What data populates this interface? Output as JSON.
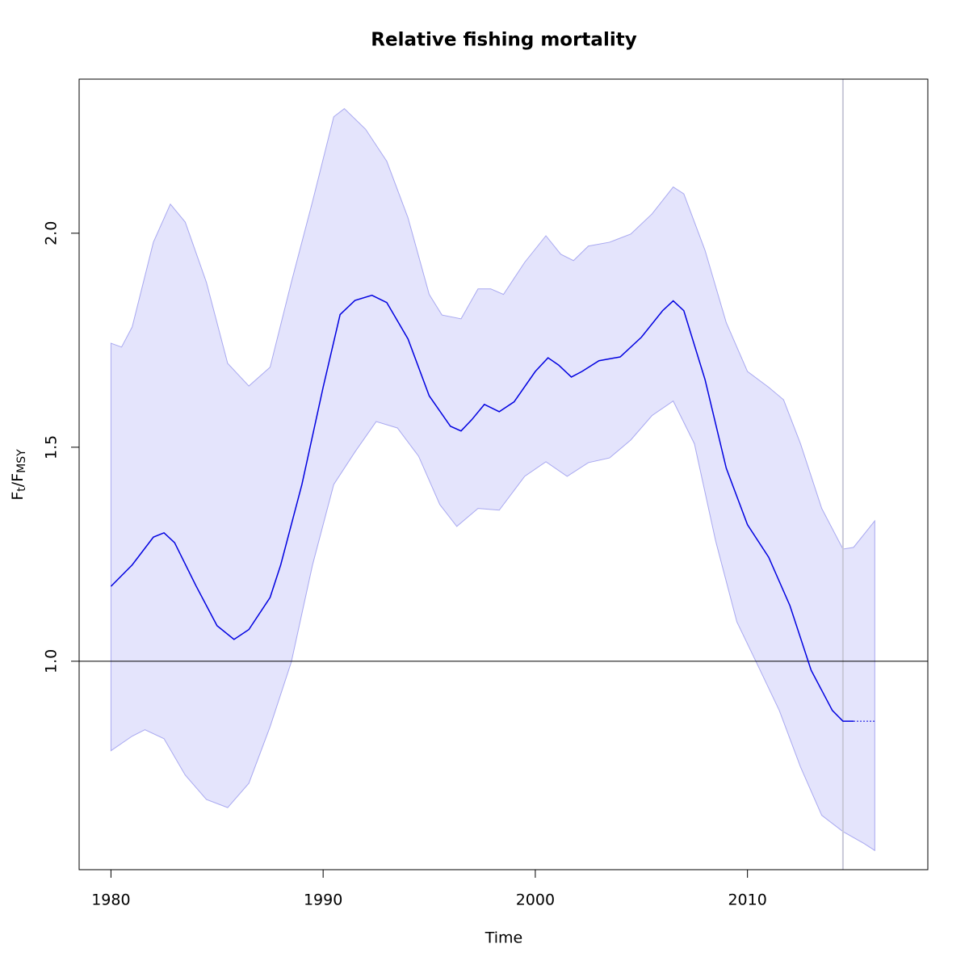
{
  "chart_data": {
    "type": "line",
    "title": "Relative fishing mortality",
    "xlabel": "Time",
    "ylabel": {
      "f1": "F",
      "sub1": "t",
      "f2": "/F",
      "sub2": "MSY"
    },
    "xlim": [
      1978.5,
      2018.5
    ],
    "ylim": [
      0.513,
      2.36
    ],
    "xticks": [
      1980,
      1990,
      2000,
      2010
    ],
    "yticks": [
      {
        "value": 1,
        "label": "1.0"
      },
      {
        "value": 1.5,
        "label": "1.5"
      },
      {
        "value": 2,
        "label": "2.0"
      }
    ],
    "reference_line": 1,
    "vline": 2014.5,
    "series": [
      {
        "color": "#0000e0",
        "x": [
          1980,
          1981,
          1982,
          1982.5,
          1983,
          1984,
          1985,
          1985.8,
          1986.5,
          1987.5,
          1988,
          1989,
          1990,
          1990.8,
          1991.5,
          1992.3,
          1993,
          1994,
          1995,
          1996,
          1996.5,
          1997,
          1997.6,
          1998.3,
          1999,
          2000,
          2000.6,
          2001.1,
          2001.7,
          2002.2,
          2003,
          2004,
          2005,
          2006,
          2006.5,
          2007,
          2008,
          2009,
          2010,
          2011,
          2012,
          2013,
          2014,
          2014.5,
          2015
        ],
        "values": [
          1.175,
          1.225,
          1.29,
          1.3,
          1.277,
          1.177,
          1.083,
          1.051,
          1.074,
          1.149,
          1.225,
          1.413,
          1.64,
          1.81,
          1.843,
          1.855,
          1.838,
          1.753,
          1.62,
          1.549,
          1.538,
          1.564,
          1.6,
          1.583,
          1.606,
          1.677,
          1.709,
          1.692,
          1.664,
          1.677,
          1.702,
          1.711,
          1.757,
          1.819,
          1.842,
          1.819,
          1.658,
          1.451,
          1.319,
          1.243,
          1.13,
          0.979,
          0.885,
          0.86,
          0.86
        ]
      },
      {
        "color": "#0000e0",
        "dashed": true,
        "x": [
          2015,
          2016
        ],
        "values": [
          0.86,
          0.86
        ]
      }
    ],
    "band": {
      "color": "#e4e4fc",
      "edge": "#a8a8f0",
      "upper": {
        "x": [
          1980,
          1980.5,
          1981,
          1982,
          1982.8,
          1983.5,
          1984.5,
          1985.5,
          1986.5,
          1987.5,
          1988.5,
          1989.5,
          1990.5,
          1991,
          1992,
          1993,
          1994,
          1995,
          1995.6,
          1996.5,
          1997.3,
          1997.9,
          1998.5,
          1999.5,
          2000.5,
          2001.2,
          2001.8,
          2002.5,
          2003.5,
          2004.5,
          2005.5,
          2006.5,
          2007,
          2008,
          2009,
          2010,
          2011,
          2011.7,
          2012.5,
          2013.5,
          2014.5,
          2015,
          2016
        ],
        "values": [
          1.743,
          1.734,
          1.781,
          1.979,
          2.068,
          2.026,
          1.885,
          1.696,
          1.643,
          1.687,
          1.885,
          2.074,
          2.272,
          2.291,
          2.243,
          2.168,
          2.036,
          1.857,
          1.809,
          1.8,
          1.87,
          1.87,
          1.857,
          1.932,
          1.994,
          1.951,
          1.936,
          1.97,
          1.979,
          1.998,
          2.045,
          2.108,
          2.092,
          1.96,
          1.791,
          1.677,
          1.64,
          1.611,
          1.508,
          1.357,
          1.262,
          1.266,
          1.328
        ]
      },
      "lower": {
        "x": [
          1980,
          1981,
          1981.6,
          1982.5,
          1983.5,
          1984.5,
          1985.5,
          1986.5,
          1987.5,
          1988.5,
          1989.5,
          1990.5,
          1991.5,
          1992.5,
          1993.5,
          1994.5,
          1995.5,
          1996.3,
          1997.3,
          1998.3,
          1999.5,
          2000.5,
          2001.5,
          2002.5,
          2003.5,
          2004.5,
          2005.5,
          2006.5,
          2007.5,
          2008.5,
          2009.5,
          2010.5,
          2011.5,
          2012.5,
          2013.5,
          2014.5,
          2015.5,
          2016
        ],
        "values": [
          0.791,
          0.825,
          0.84,
          0.819,
          0.734,
          0.677,
          0.658,
          0.715,
          0.847,
          0.998,
          1.225,
          1.413,
          1.489,
          1.56,
          1.545,
          1.479,
          1.366,
          1.315,
          1.357,
          1.353,
          1.432,
          1.466,
          1.432,
          1.464,
          1.475,
          1.517,
          1.574,
          1.608,
          1.508,
          1.281,
          1.092,
          0.989,
          0.885,
          0.753,
          0.64,
          0.602,
          0.574,
          0.558
        ]
      }
    }
  }
}
